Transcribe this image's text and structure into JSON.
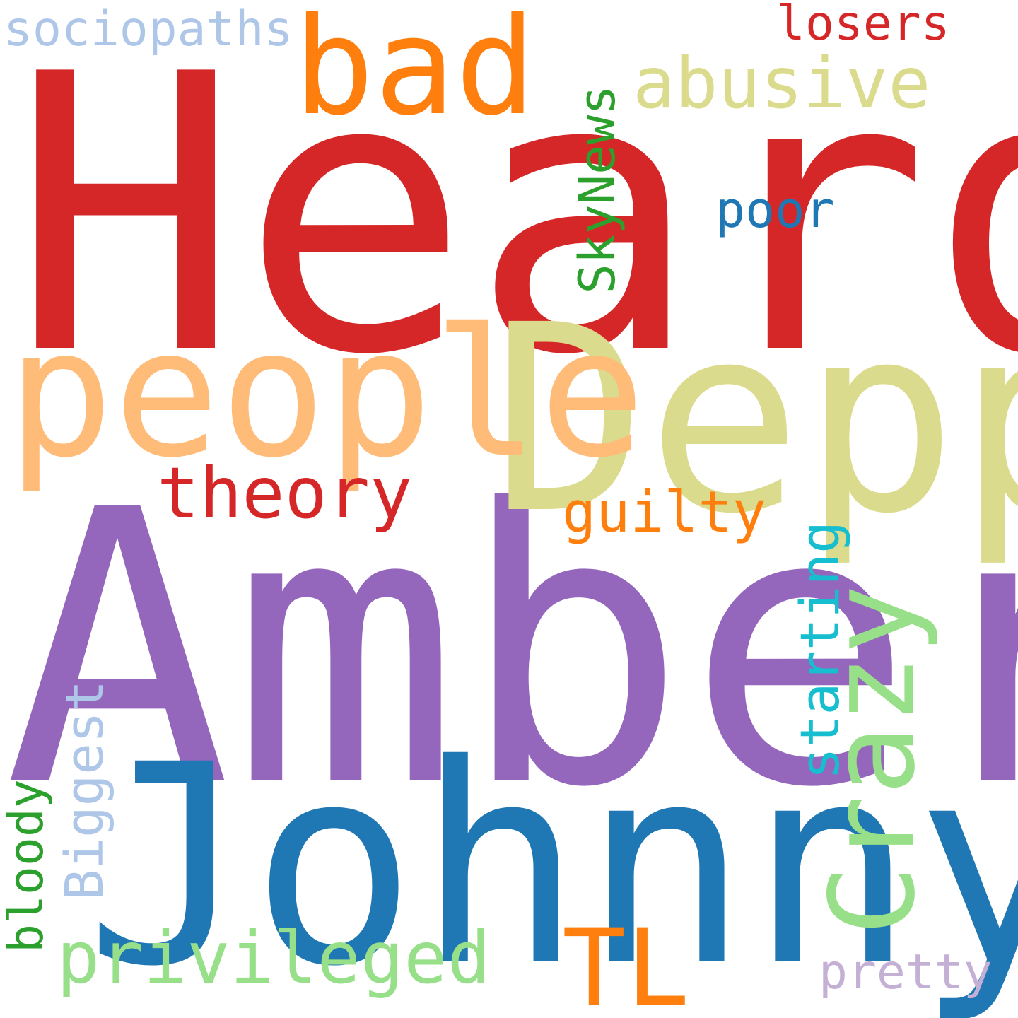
{
  "words": {
    "heard": {
      "text": "Heard",
      "color": "#d62728"
    },
    "amber": {
      "text": "Amber",
      "color": "#9467bd"
    },
    "johnny": {
      "text": "Johnny",
      "color": "#1f77b4"
    },
    "depp": {
      "text": "Depp",
      "color": "#dbdb8d"
    },
    "people": {
      "text": "people",
      "color": "#ffbb78"
    },
    "bad": {
      "text": "bad",
      "color": "#ff7f0e"
    },
    "abusive": {
      "text": "abusive",
      "color": "#dbdb8d"
    },
    "theory": {
      "text": "theory",
      "color": "#d62728"
    },
    "crazy": {
      "text": "Crazy",
      "color": "#98df8a"
    },
    "skynews": {
      "text": "SkyNews",
      "color": "#2ca02c"
    },
    "privileged": {
      "text": "privileged",
      "color": "#98df8a"
    },
    "tl": {
      "text": "TL",
      "color": "#ff7f0e"
    },
    "starting": {
      "text": "starting",
      "color": "#17becf"
    },
    "biggest": {
      "text": "Biggest",
      "color": "#aec7e8"
    },
    "bloody": {
      "text": "bloody",
      "color": "#2ca02c"
    },
    "guilty": {
      "text": "guilty",
      "color": "#ff7f0e"
    },
    "poor": {
      "text": "poor",
      "color": "#1f77b4"
    },
    "losers": {
      "text": "losers",
      "color": "#d62728"
    },
    "sociopaths": {
      "text": "sociopaths",
      "color": "#aec7e8"
    },
    "pretty": {
      "text": "pretty",
      "color": "#c5b0d5"
    }
  }
}
